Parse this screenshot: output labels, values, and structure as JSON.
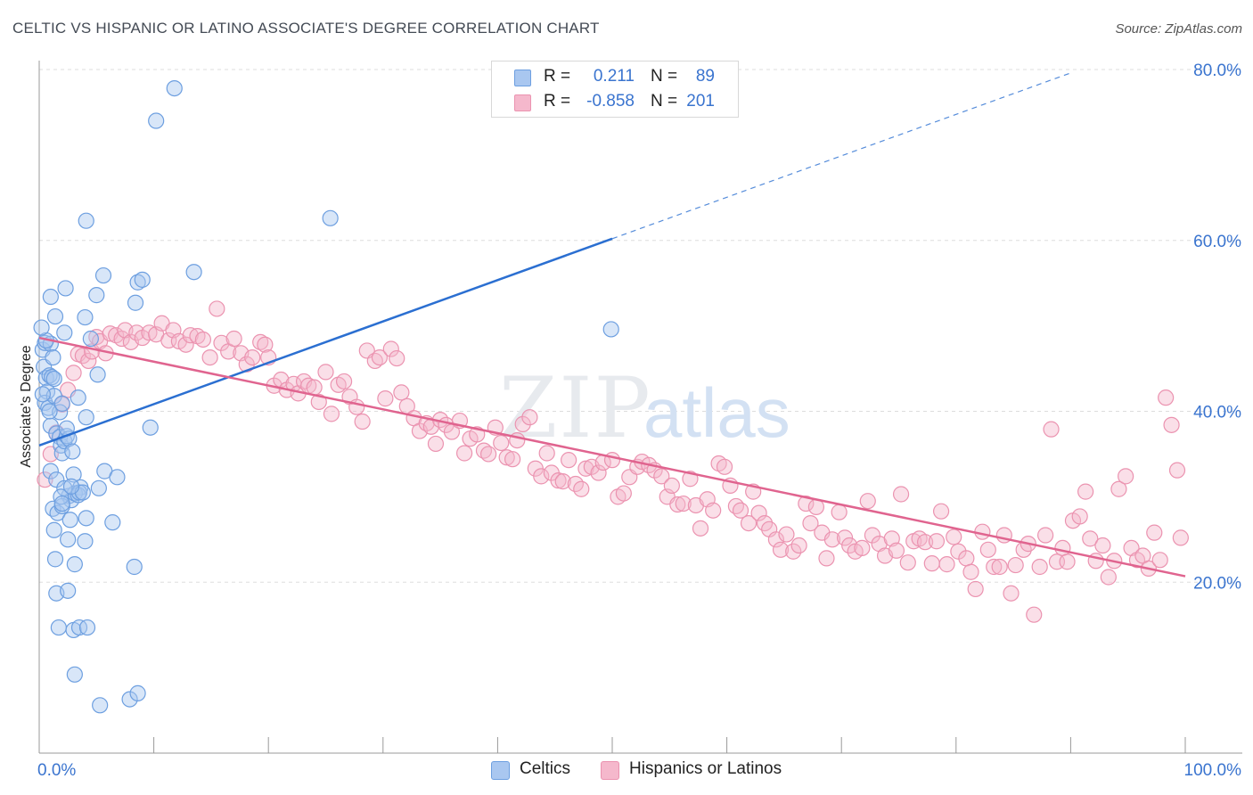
{
  "title": "CELTIC VS HISPANIC OR LATINO ASSOCIATE'S DEGREE CORRELATION CHART",
  "source": "Source: ZipAtlas.com",
  "watermark": {
    "zip": "ZIP",
    "atlas": "atlas"
  },
  "legend_top": {
    "rows": [
      {
        "r_label": "R =",
        "r_value": "0.211",
        "n_label": "N =",
        "n_value": "89"
      },
      {
        "r_label": "R =",
        "r_value": "-0.858",
        "n_label": "N =",
        "n_value": "201"
      }
    ]
  },
  "legend_bottom": {
    "celtics": "Celtics",
    "hispanics": "Hispanics or Latinos"
  },
  "colors": {
    "celtics_fill": "#a9c7f0",
    "celtics_stroke": "#6d9fe0",
    "celtics_line": "#2b6fd1",
    "hispanic_fill": "#f5b8cc",
    "hispanic_stroke": "#eb93b0",
    "hispanic_line": "#e0648f",
    "axis_text": "#3a74cf",
    "grid": "#dddddd"
  },
  "chart_data": {
    "type": "scatter",
    "ylabel": "Associate's Degree",
    "xlabel": "",
    "xlim": [
      0,
      100
    ],
    "ylim": [
      0,
      80
    ],
    "x_tick_labels": [
      "0.0%",
      "100.0%"
    ],
    "y_tick_labels": [
      "20.0%",
      "40.0%",
      "60.0%",
      "80.0%"
    ],
    "y_ticks": [
      20,
      40,
      60,
      80
    ],
    "grid": true,
    "series": [
      {
        "name": "Celtics",
        "regression": {
          "x0": 0,
          "y0": 36.0,
          "x1": 50,
          "y1": 60.2,
          "dash_to_x": 90,
          "dash_to_y": 79.6
        },
        "points": [
          [
            0.3,
            47.2
          ],
          [
            0.5,
            48.0
          ],
          [
            0.4,
            45.2
          ],
          [
            0.6,
            43.9
          ],
          [
            0.7,
            42.3
          ],
          [
            0.5,
            41.0
          ],
          [
            0.8,
            40.4
          ],
          [
            0.9,
            44.2
          ],
          [
            1.0,
            47.9
          ],
          [
            1.2,
            46.3
          ],
          [
            1.1,
            44.0
          ],
          [
            1.3,
            41.8
          ],
          [
            1.0,
            38.3
          ],
          [
            1.5,
            37.4
          ],
          [
            1.8,
            37.0
          ],
          [
            1.9,
            36.0
          ],
          [
            2.0,
            35.1
          ],
          [
            2.2,
            36.5
          ],
          [
            2.4,
            37.1
          ],
          [
            2.6,
            36.8
          ],
          [
            1.0,
            33.0
          ],
          [
            1.5,
            32.0
          ],
          [
            2.9,
            35.3
          ],
          [
            3.0,
            32.6
          ],
          [
            3.6,
            31.1
          ],
          [
            2.6,
            30.1
          ],
          [
            2.8,
            29.6
          ],
          [
            3.1,
            30.4
          ],
          [
            3.4,
            30.2
          ],
          [
            1.2,
            28.6
          ],
          [
            1.6,
            28.1
          ],
          [
            2.0,
            28.9
          ],
          [
            2.7,
            27.3
          ],
          [
            4.1,
            27.5
          ],
          [
            1.3,
            26.1
          ],
          [
            2.5,
            25.0
          ],
          [
            4.0,
            24.8
          ],
          [
            1.4,
            22.7
          ],
          [
            3.1,
            22.1
          ],
          [
            8.3,
            21.8
          ],
          [
            1.5,
            18.7
          ],
          [
            2.5,
            19.0
          ],
          [
            1.7,
            14.7
          ],
          [
            3.0,
            14.4
          ],
          [
            3.5,
            14.7
          ],
          [
            4.2,
            14.7
          ],
          [
            3.1,
            9.2
          ],
          [
            5.3,
            5.6
          ],
          [
            7.9,
            6.3
          ],
          [
            8.6,
            7.0
          ],
          [
            1.0,
            53.4
          ],
          [
            1.4,
            51.1
          ],
          [
            2.3,
            54.4
          ],
          [
            2.2,
            49.2
          ],
          [
            4.0,
            51.0
          ],
          [
            4.5,
            48.5
          ],
          [
            5.6,
            55.9
          ],
          [
            5.0,
            53.6
          ],
          [
            8.4,
            52.7
          ],
          [
            8.6,
            55.1
          ],
          [
            9.0,
            55.4
          ],
          [
            13.5,
            56.3
          ],
          [
            4.1,
            62.3
          ],
          [
            10.2,
            74.0
          ],
          [
            11.8,
            77.8
          ],
          [
            25.4,
            62.6
          ],
          [
            49.9,
            49.6
          ],
          [
            5.1,
            44.3
          ],
          [
            4.1,
            39.3
          ],
          [
            3.4,
            41.6
          ],
          [
            1.8,
            39.9
          ],
          [
            0.9,
            40.0
          ],
          [
            5.7,
            33.0
          ],
          [
            6.8,
            32.3
          ],
          [
            5.2,
            31.0
          ],
          [
            6.4,
            27.0
          ],
          [
            3.5,
            30.5
          ],
          [
            9.7,
            38.1
          ],
          [
            1.3,
            43.8
          ],
          [
            0.6,
            48.3
          ],
          [
            0.2,
            49.8
          ],
          [
            0.3,
            42.0
          ],
          [
            2.0,
            40.9
          ],
          [
            2.4,
            38.0
          ],
          [
            3.8,
            30.5
          ],
          [
            2.2,
            31.0
          ],
          [
            1.9,
            30.0
          ],
          [
            2.8,
            31.2
          ],
          [
            2.0,
            29.2
          ]
        ]
      },
      {
        "name": "Hispanics or Latinos",
        "regression": {
          "x0": 0,
          "y0": 48.6,
          "x1": 100,
          "y1": 20.7
        },
        "points": [
          [
            0.5,
            32.0
          ],
          [
            1.0,
            35.0
          ],
          [
            1.5,
            37.5
          ],
          [
            2.0,
            40.8
          ],
          [
            2.5,
            42.5
          ],
          [
            3.0,
            44.5
          ],
          [
            3.4,
            46.7
          ],
          [
            3.8,
            46.5
          ],
          [
            4.3,
            45.9
          ],
          [
            4.6,
            47.0
          ],
          [
            5.0,
            48.7
          ],
          [
            5.3,
            48.2
          ],
          [
            5.8,
            46.8
          ],
          [
            6.2,
            49.1
          ],
          [
            6.7,
            48.9
          ],
          [
            7.2,
            48.5
          ],
          [
            7.5,
            49.5
          ],
          [
            8.0,
            48.1
          ],
          [
            8.5,
            49.2
          ],
          [
            9.0,
            48.6
          ],
          [
            9.6,
            49.2
          ],
          [
            10.2,
            49.0
          ],
          [
            10.7,
            50.3
          ],
          [
            11.3,
            48.3
          ],
          [
            11.7,
            49.5
          ],
          [
            12.2,
            48.2
          ],
          [
            12.8,
            47.8
          ],
          [
            13.2,
            48.9
          ],
          [
            13.8,
            48.8
          ],
          [
            14.3,
            48.4
          ],
          [
            14.9,
            46.3
          ],
          [
            15.5,
            52.0
          ],
          [
            15.9,
            48.0
          ],
          [
            16.5,
            47.0
          ],
          [
            17.0,
            48.5
          ],
          [
            17.6,
            46.8
          ],
          [
            18.1,
            45.5
          ],
          [
            18.6,
            46.3
          ],
          [
            19.3,
            48.1
          ],
          [
            19.7,
            47.8
          ],
          [
            20.0,
            46.3
          ],
          [
            20.5,
            43.0
          ],
          [
            21.1,
            43.7
          ],
          [
            21.6,
            42.5
          ],
          [
            22.2,
            43.2
          ],
          [
            22.6,
            42.1
          ],
          [
            23.1,
            43.5
          ],
          [
            23.5,
            43.0
          ],
          [
            24.0,
            42.8
          ],
          [
            24.4,
            41.1
          ],
          [
            25.0,
            44.6
          ],
          [
            25.5,
            39.7
          ],
          [
            26.1,
            43.1
          ],
          [
            26.6,
            43.5
          ],
          [
            27.1,
            41.7
          ],
          [
            27.7,
            40.5
          ],
          [
            28.2,
            38.8
          ],
          [
            28.6,
            47.1
          ],
          [
            29.3,
            45.9
          ],
          [
            29.7,
            46.3
          ],
          [
            30.2,
            41.5
          ],
          [
            30.7,
            47.3
          ],
          [
            31.2,
            46.2
          ],
          [
            31.6,
            42.2
          ],
          [
            32.1,
            40.6
          ],
          [
            32.7,
            39.2
          ],
          [
            33.2,
            37.7
          ],
          [
            33.8,
            38.6
          ],
          [
            34.2,
            38.2
          ],
          [
            34.6,
            36.2
          ],
          [
            35.0,
            39.0
          ],
          [
            35.5,
            38.4
          ],
          [
            36.0,
            37.6
          ],
          [
            36.7,
            38.9
          ],
          [
            37.1,
            35.1
          ],
          [
            37.6,
            36.8
          ],
          [
            38.2,
            37.3
          ],
          [
            38.8,
            35.4
          ],
          [
            39.2,
            35.0
          ],
          [
            39.8,
            38.1
          ],
          [
            40.3,
            36.3
          ],
          [
            40.8,
            34.6
          ],
          [
            41.3,
            34.4
          ],
          [
            41.7,
            36.6
          ],
          [
            42.2,
            38.5
          ],
          [
            42.8,
            39.3
          ],
          [
            43.3,
            33.3
          ],
          [
            43.8,
            32.4
          ],
          [
            44.3,
            35.1
          ],
          [
            44.7,
            32.8
          ],
          [
            45.3,
            31.9
          ],
          [
            45.7,
            31.8
          ],
          [
            46.2,
            34.3
          ],
          [
            46.8,
            31.5
          ],
          [
            47.3,
            30.9
          ],
          [
            47.7,
            33.3
          ],
          [
            48.2,
            33.5
          ],
          [
            48.8,
            32.8
          ],
          [
            49.2,
            34.0
          ],
          [
            50.0,
            34.3
          ],
          [
            50.5,
            30.0
          ],
          [
            51.0,
            30.4
          ],
          [
            51.5,
            32.3
          ],
          [
            52.2,
            33.5
          ],
          [
            52.6,
            34.1
          ],
          [
            53.2,
            33.7
          ],
          [
            53.7,
            33.1
          ],
          [
            54.3,
            32.4
          ],
          [
            54.8,
            30.0
          ],
          [
            55.2,
            31.3
          ],
          [
            55.7,
            29.1
          ],
          [
            56.2,
            29.2
          ],
          [
            56.8,
            32.1
          ],
          [
            57.3,
            29.0
          ],
          [
            57.7,
            26.3
          ],
          [
            58.3,
            29.7
          ],
          [
            58.8,
            28.4
          ],
          [
            59.3,
            33.9
          ],
          [
            59.8,
            33.5
          ],
          [
            60.3,
            31.3
          ],
          [
            60.8,
            28.9
          ],
          [
            61.2,
            28.4
          ],
          [
            61.9,
            26.9
          ],
          [
            62.3,
            30.6
          ],
          [
            62.8,
            28.1
          ],
          [
            63.3,
            26.9
          ],
          [
            63.7,
            26.2
          ],
          [
            64.3,
            25.0
          ],
          [
            64.7,
            23.8
          ],
          [
            65.2,
            25.6
          ],
          [
            65.8,
            23.6
          ],
          [
            66.3,
            24.3
          ],
          [
            66.9,
            29.2
          ],
          [
            67.3,
            26.9
          ],
          [
            67.8,
            28.8
          ],
          [
            68.3,
            25.8
          ],
          [
            68.7,
            22.8
          ],
          [
            69.2,
            25.0
          ],
          [
            69.8,
            28.2
          ],
          [
            70.3,
            25.2
          ],
          [
            70.7,
            24.3
          ],
          [
            71.2,
            23.6
          ],
          [
            71.8,
            24.0
          ],
          [
            72.3,
            29.5
          ],
          [
            72.7,
            25.5
          ],
          [
            73.3,
            24.5
          ],
          [
            73.8,
            23.1
          ],
          [
            74.4,
            25.1
          ],
          [
            74.8,
            23.7
          ],
          [
            75.2,
            30.3
          ],
          [
            75.8,
            22.3
          ],
          [
            76.3,
            24.8
          ],
          [
            76.8,
            25.1
          ],
          [
            77.3,
            24.7
          ],
          [
            77.9,
            22.2
          ],
          [
            78.3,
            24.8
          ],
          [
            78.7,
            28.3
          ],
          [
            79.2,
            22.1
          ],
          [
            79.8,
            25.3
          ],
          [
            80.2,
            23.6
          ],
          [
            80.9,
            22.8
          ],
          [
            81.3,
            21.2
          ],
          [
            81.7,
            19.2
          ],
          [
            82.3,
            25.9
          ],
          [
            82.8,
            23.8
          ],
          [
            83.3,
            21.8
          ],
          [
            83.8,
            21.8
          ],
          [
            84.2,
            25.5
          ],
          [
            84.8,
            18.7
          ],
          [
            85.2,
            22.0
          ],
          [
            85.9,
            23.8
          ],
          [
            86.3,
            24.5
          ],
          [
            86.8,
            16.2
          ],
          [
            87.3,
            21.8
          ],
          [
            87.8,
            25.5
          ],
          [
            88.3,
            37.9
          ],
          [
            88.8,
            22.4
          ],
          [
            89.3,
            24.0
          ],
          [
            89.7,
            22.4
          ],
          [
            90.2,
            27.2
          ],
          [
            90.8,
            27.7
          ],
          [
            91.3,
            30.6
          ],
          [
            91.7,
            25.1
          ],
          [
            92.2,
            22.5
          ],
          [
            92.8,
            24.3
          ],
          [
            93.3,
            20.6
          ],
          [
            93.8,
            22.5
          ],
          [
            94.2,
            30.9
          ],
          [
            94.8,
            32.4
          ],
          [
            95.3,
            24.0
          ],
          [
            95.8,
            22.6
          ],
          [
            96.3,
            23.1
          ],
          [
            96.8,
            21.6
          ],
          [
            97.3,
            25.8
          ],
          [
            97.8,
            22.6
          ],
          [
            98.3,
            41.6
          ],
          [
            98.8,
            38.4
          ],
          [
            99.3,
            33.1
          ],
          [
            99.6,
            25.2
          ]
        ]
      }
    ]
  }
}
